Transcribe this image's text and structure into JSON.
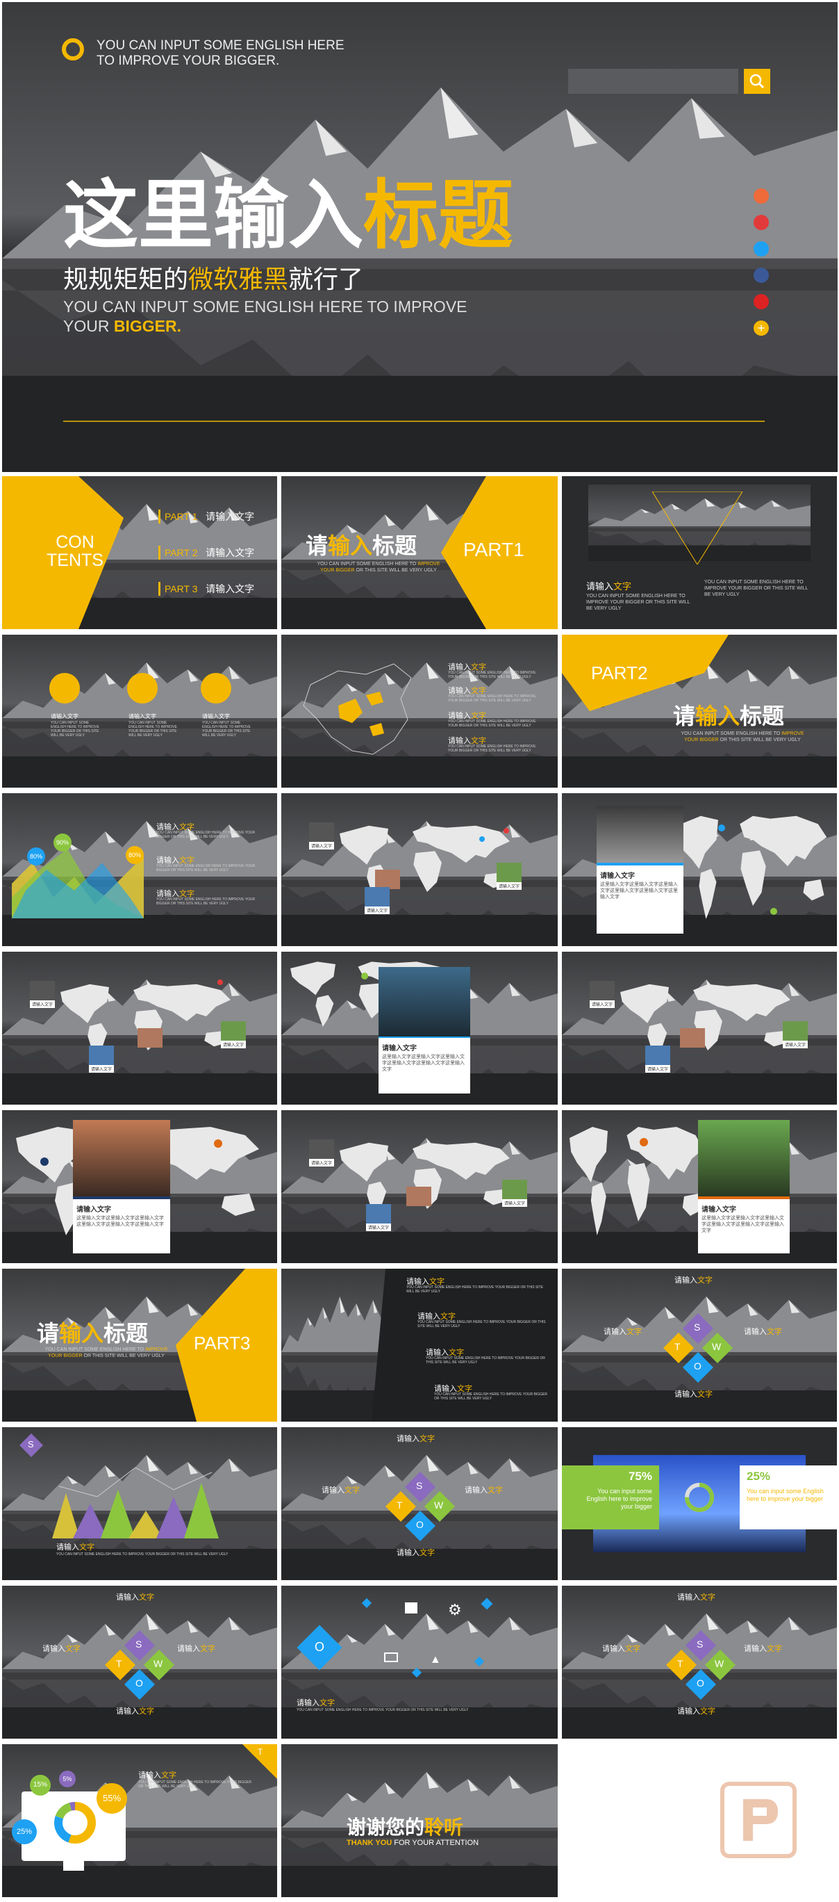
{
  "hero": {
    "english_header": "YOU CAN INPUT SOME ENGLISH HERE TO IMPROVE YOUR BIGGER.",
    "title_white": "这里输入",
    "title_yellow": "标题",
    "subtitle_pre": "规规矩矩的",
    "subtitle_yellow": "微软雅黑",
    "subtitle_post": "就行了",
    "english_line1": "YOU CAN INPUT SOME ENGLISH HERE TO IMPROVE",
    "english_line2_pre": "YOUR ",
    "english_line2_yellow": "BIGGER."
  },
  "contents": {
    "logo_line1": "CON",
    "logo_line2": "TENTS",
    "items": [
      {
        "part": "PART 1",
        "text": "请输入文字"
      },
      {
        "part": "PART 2",
        "text": "请输入文字"
      },
      {
        "part": "PART 3",
        "text": "请输入文字"
      }
    ]
  },
  "section": {
    "title_pre": "请",
    "title_yellow": "输入",
    "title_post": "标题",
    "en_line1_pre": "YOU CAN INPUT SOME ENGLISH HERE TO ",
    "en_line1_yellow": "IMPROVE",
    "en_line2_yellow": "YOUR BIGGER",
    "en_line2_post": " OR THIS SITE WILL BE VERY UGLY",
    "part1": "PART1",
    "part2": "PART2",
    "part3": "PART3"
  },
  "text": {
    "input_text": "请输入文字",
    "input_text_pre": "请输入",
    "input_text_yellow": "文字",
    "body_cn": "这里输入文字这里输入文字这里输入文字这里输入文字这里输入文字这里输入文字",
    "body_en": "YOU CAN INPUT SOME ENGLISH HERE TO IMPROVE YOUR BIGGER OR THIS SITE WILL BE VERY UGLY",
    "map_label": "请输入文字"
  },
  "chart_labels": {
    "p80a": "80%",
    "p90": "90%",
    "p80b": "80%",
    "p75": "75%",
    "p25": "25%",
    "d15": "15%",
    "d5": "5%",
    "d55": "55%",
    "d25": "25%",
    "pct_text": "You can input some English here to improve your bigger"
  },
  "swot": {
    "s": "S",
    "w": "W",
    "t": "T",
    "o": "O"
  },
  "closing": {
    "thanks_pre": "谢谢您的",
    "thanks_yellow": "聆听",
    "en_yellow": "THANK YOU",
    "en_post": " FOR YOUR ATTENTION"
  },
  "corner_t": "T",
  "colors": {
    "accent": "#f5b800",
    "dark_bg": "#2f3032",
    "blue": "#1ea1f2",
    "green": "#8cc63f",
    "purple": "#8a6bbf"
  },
  "icons": [
    "social-qq-icon",
    "weibo-icon",
    "twitter-icon",
    "facebook-icon",
    "youtube-icon",
    "plus-icon",
    "search-icon",
    "globe-icon",
    "people-icon",
    "bike-icon",
    "lighthouse-icon",
    "map-pin-icon",
    "gear-icon",
    "chart-icon",
    "laptop-icon",
    "watermark-logo"
  ]
}
